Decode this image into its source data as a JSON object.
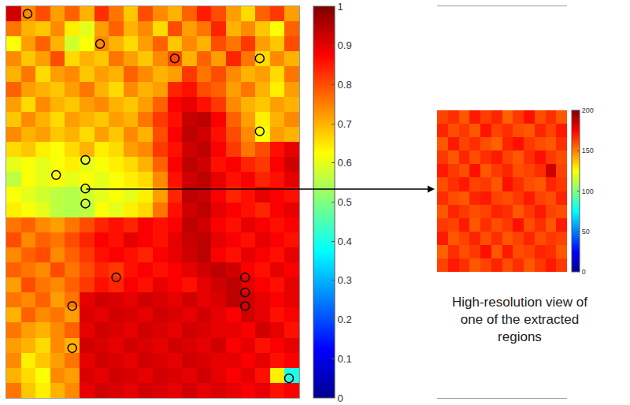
{
  "chart_data": {
    "type": "heatmap",
    "tick_labels": false,
    "xlim": [
      -0.5,
      19.5
    ],
    "ylim": [
      -0.5,
      25.5
    ],
    "cells": [
      [
        0.92,
        0.74,
        0.8,
        0.72,
        0.78,
        0.7,
        0.83,
        0.76,
        0.68,
        0.8,
        0.74,
        0.7,
        0.78,
        0.85,
        0.8,
        0.72,
        0.66,
        0.78,
        0.82,
        0.72
      ],
      [
        0.76,
        0.7,
        0.68,
        0.74,
        0.64,
        0.6,
        0.72,
        0.78,
        0.7,
        0.74,
        0.66,
        0.8,
        0.72,
        0.76,
        0.84,
        0.7,
        0.74,
        0.68,
        0.62,
        0.78
      ],
      [
        0.62,
        0.72,
        0.78,
        0.7,
        0.58,
        0.62,
        0.74,
        0.7,
        0.66,
        0.72,
        0.78,
        0.68,
        0.74,
        0.7,
        0.8,
        0.76,
        0.82,
        0.72,
        0.68,
        0.8
      ],
      [
        0.74,
        0.68,
        0.72,
        0.8,
        0.66,
        0.7,
        0.68,
        0.76,
        0.72,
        0.68,
        0.74,
        0.8,
        0.7,
        0.78,
        0.72,
        0.84,
        0.76,
        0.66,
        0.74,
        0.7
      ],
      [
        0.7,
        0.76,
        0.66,
        0.72,
        0.74,
        0.68,
        0.72,
        0.7,
        0.78,
        0.74,
        0.7,
        0.72,
        0.82,
        0.76,
        0.8,
        0.74,
        0.7,
        0.72,
        0.66,
        0.76
      ],
      [
        0.78,
        0.72,
        0.7,
        0.68,
        0.72,
        0.76,
        0.7,
        0.66,
        0.74,
        0.7,
        0.72,
        0.84,
        0.86,
        0.8,
        0.78,
        0.72,
        0.76,
        0.7,
        0.64,
        0.72
      ],
      [
        0.72,
        0.66,
        0.74,
        0.7,
        0.68,
        0.72,
        0.74,
        0.7,
        0.68,
        0.72,
        0.78,
        0.88,
        0.9,
        0.86,
        0.82,
        0.74,
        0.7,
        0.68,
        0.72,
        0.7
      ],
      [
        0.68,
        0.74,
        0.7,
        0.66,
        0.72,
        0.7,
        0.68,
        0.72,
        0.7,
        0.76,
        0.82,
        0.86,
        0.93,
        0.94,
        0.88,
        0.78,
        0.72,
        0.64,
        0.7,
        0.74
      ],
      [
        0.74,
        0.7,
        0.72,
        0.68,
        0.7,
        0.66,
        0.72,
        0.68,
        0.74,
        0.7,
        0.8,
        0.88,
        0.94,
        0.92,
        0.86,
        0.8,
        0.74,
        0.62,
        0.72,
        0.7
      ],
      [
        0.66,
        0.68,
        0.64,
        0.62,
        0.66,
        0.7,
        0.64,
        0.66,
        0.72,
        0.74,
        0.82,
        0.86,
        0.92,
        0.94,
        0.88,
        0.82,
        0.76,
        0.8,
        0.86,
        0.9
      ],
      [
        0.6,
        0.62,
        0.6,
        0.62,
        0.64,
        0.6,
        0.62,
        0.64,
        0.66,
        0.7,
        0.78,
        0.88,
        0.94,
        0.92,
        0.86,
        0.88,
        0.84,
        0.82,
        0.88,
        0.92
      ],
      [
        0.56,
        0.62,
        0.6,
        0.62,
        0.6,
        0.62,
        0.6,
        0.62,
        0.64,
        0.66,
        0.74,
        0.86,
        0.92,
        0.94,
        0.9,
        0.86,
        0.88,
        0.84,
        0.86,
        0.9
      ],
      [
        0.62,
        0.6,
        0.58,
        0.56,
        0.55,
        0.58,
        0.6,
        0.62,
        0.6,
        0.64,
        0.72,
        0.84,
        0.94,
        0.93,
        0.88,
        0.84,
        0.86,
        0.9,
        0.88,
        0.86
      ],
      [
        0.64,
        0.62,
        0.6,
        0.56,
        0.55,
        0.56,
        0.62,
        0.6,
        0.64,
        0.66,
        0.76,
        0.86,
        0.92,
        0.94,
        0.9,
        0.88,
        0.86,
        0.84,
        0.88,
        0.9
      ],
      [
        0.76,
        0.78,
        0.74,
        0.72,
        0.76,
        0.8,
        0.84,
        0.86,
        0.84,
        0.88,
        0.86,
        0.88,
        0.94,
        0.92,
        0.88,
        0.86,
        0.9,
        0.88,
        0.86,
        0.88
      ],
      [
        0.8,
        0.74,
        0.78,
        0.76,
        0.8,
        0.84,
        0.88,
        0.86,
        0.9,
        0.88,
        0.86,
        0.9,
        0.93,
        0.94,
        0.9,
        0.88,
        0.86,
        0.9,
        0.88,
        0.86
      ],
      [
        0.74,
        0.78,
        0.8,
        0.74,
        0.78,
        0.82,
        0.86,
        0.88,
        0.86,
        0.84,
        0.88,
        0.9,
        0.92,
        0.94,
        0.88,
        0.86,
        0.9,
        0.88,
        0.86,
        0.9
      ],
      [
        0.78,
        0.76,
        0.74,
        0.8,
        0.76,
        0.8,
        0.84,
        0.82,
        0.86,
        0.88,
        0.86,
        0.88,
        0.9,
        0.92,
        0.94,
        0.92,
        0.88,
        0.86,
        0.9,
        0.88
      ],
      [
        0.72,
        0.8,
        0.76,
        0.74,
        0.78,
        0.82,
        0.86,
        0.84,
        0.88,
        0.86,
        0.9,
        0.88,
        0.86,
        0.9,
        0.92,
        0.94,
        0.9,
        0.88,
        0.86,
        0.9
      ],
      [
        0.76,
        0.74,
        0.78,
        0.72,
        0.76,
        0.9,
        0.92,
        0.91,
        0.9,
        0.92,
        0.91,
        0.9,
        0.92,
        0.9,
        0.91,
        0.94,
        0.92,
        0.9,
        0.88,
        0.9
      ],
      [
        0.7,
        0.78,
        0.74,
        0.76,
        0.72,
        0.91,
        0.9,
        0.92,
        0.91,
        0.9,
        0.92,
        0.91,
        0.9,
        0.92,
        0.9,
        0.88,
        0.92,
        0.9,
        0.86,
        0.88
      ],
      [
        0.76,
        0.72,
        0.7,
        0.74,
        0.78,
        0.9,
        0.92,
        0.91,
        0.9,
        0.92,
        0.91,
        0.9,
        0.92,
        0.91,
        0.9,
        0.9,
        0.88,
        0.92,
        0.9,
        0.86
      ],
      [
        0.72,
        0.7,
        0.66,
        0.74,
        0.7,
        0.92,
        0.91,
        0.9,
        0.92,
        0.91,
        0.9,
        0.92,
        0.91,
        0.9,
        0.92,
        0.88,
        0.9,
        0.86,
        0.88,
        0.9
      ],
      [
        0.74,
        0.64,
        0.68,
        0.72,
        0.76,
        0.9,
        0.92,
        0.91,
        0.9,
        0.92,
        0.91,
        0.9,
        0.92,
        0.91,
        0.9,
        0.9,
        0.88,
        0.9,
        0.86,
        0.88
      ],
      [
        0.7,
        0.66,
        0.62,
        0.74,
        0.72,
        0.91,
        0.9,
        0.92,
        0.91,
        0.9,
        0.92,
        0.91,
        0.9,
        0.92,
        0.9,
        0.88,
        0.9,
        0.86,
        0.64,
        0.4
      ],
      [
        0.76,
        0.68,
        0.64,
        0.7,
        0.74,
        0.9,
        0.92,
        0.91,
        0.9,
        0.92,
        0.91,
        0.9,
        0.92,
        0.9,
        0.91,
        0.9,
        0.88,
        0.9,
        0.86,
        0.88
      ]
    ],
    "colorbar": {
      "range": [
        0,
        1
      ],
      "ticks": [
        0,
        0.1,
        0.2,
        0.3,
        0.4,
        0.5,
        0.6,
        0.7,
        0.8,
        0.9,
        1
      ]
    },
    "regions": {
      "marker": "circle-open",
      "color": "#000000",
      "x": [
        0.95,
        5.9,
        11.0,
        16.8,
        16.8,
        4.9,
        2.9,
        4.9,
        4.9,
        7.0,
        15.8,
        15.8,
        15.8,
        4.0,
        4.0,
        18.8
      ],
      "y": [
        0.0,
        2.0,
        2.96,
        2.96,
        7.8,
        9.7,
        10.7,
        11.6,
        12.6,
        17.5,
        17.5,
        18.5,
        19.4,
        19.4,
        22.2,
        24.2
      ]
    },
    "inset": {
      "caption": [
        "High-resolution view of",
        "one of the extracted",
        "regions"
      ],
      "xlim": [
        -0.5,
        11.5
      ],
      "ylim": [
        -0.5,
        11.5
      ],
      "cells": [
        [
          162,
          166,
          158,
          170,
          163,
          168,
          156,
          164,
          172,
          160,
          166,
          158
        ],
        [
          168,
          160,
          164,
          158,
          171,
          162,
          166,
          160,
          158,
          168,
          162,
          170
        ],
        [
          158,
          170,
          162,
          166,
          160,
          156,
          168,
          172,
          164,
          160,
          158,
          166
        ],
        [
          164,
          158,
          168,
          160,
          166,
          170,
          162,
          158,
          166,
          172,
          164,
          160
        ],
        [
          170,
          164,
          160,
          172,
          158,
          164,
          168,
          160,
          162,
          166,
          184,
          162
        ],
        [
          160,
          166,
          170,
          162,
          164,
          158,
          172,
          166,
          160,
          158,
          168,
          164
        ],
        [
          166,
          160,
          158,
          168,
          170,
          162,
          160,
          164,
          170,
          162,
          160,
          168
        ],
        [
          158,
          168,
          164,
          160,
          162,
          168,
          166,
          158,
          164,
          170,
          162,
          160
        ],
        [
          164,
          162,
          170,
          158,
          166,
          160,
          164,
          172,
          160,
          166,
          158,
          170
        ],
        [
          170,
          158,
          162,
          168,
          160,
          166,
          158,
          162,
          168,
          160,
          164,
          162
        ],
        [
          156,
          166,
          160,
          164,
          172,
          158,
          170,
          160,
          162,
          168,
          166,
          158
        ],
        [
          162,
          170,
          166,
          158,
          162,
          168,
          160,
          166,
          158,
          164,
          170,
          164
        ]
      ],
      "colorbar": {
        "range": [
          0,
          200
        ],
        "ticks": [
          0,
          50,
          100,
          150,
          200
        ]
      }
    }
  }
}
